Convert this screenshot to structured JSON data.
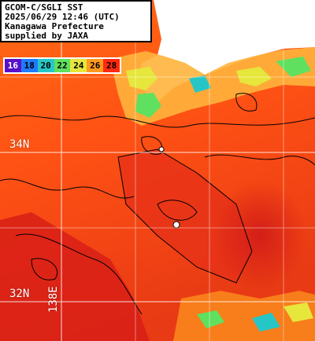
{
  "header": {
    "lines": [
      "GCOM-C/SGLI SST",
      "2025/06/29 12:46 (UTC)",
      "Kanagawa Prefecture",
      "supplied by JAXA"
    ]
  },
  "legend": {
    "labels": [
      "16",
      "18",
      "20",
      "22",
      "24",
      "26",
      "28"
    ],
    "colors": [
      "#5a10c8",
      "#1e7bff",
      "#27c6c6",
      "#5fe05f",
      "#e6e63c",
      "#ff9a1e",
      "#ff2a10"
    ]
  },
  "grid_labels": {
    "lat_34": "34N",
    "lat_32": "32N",
    "lon_138": "138E"
  },
  "colors": {
    "ocean_warm": "#ff5a14",
    "ocean_hot": "#e02818",
    "land": "#ffffff",
    "contour": "#000000",
    "grid": "#ffffff"
  }
}
